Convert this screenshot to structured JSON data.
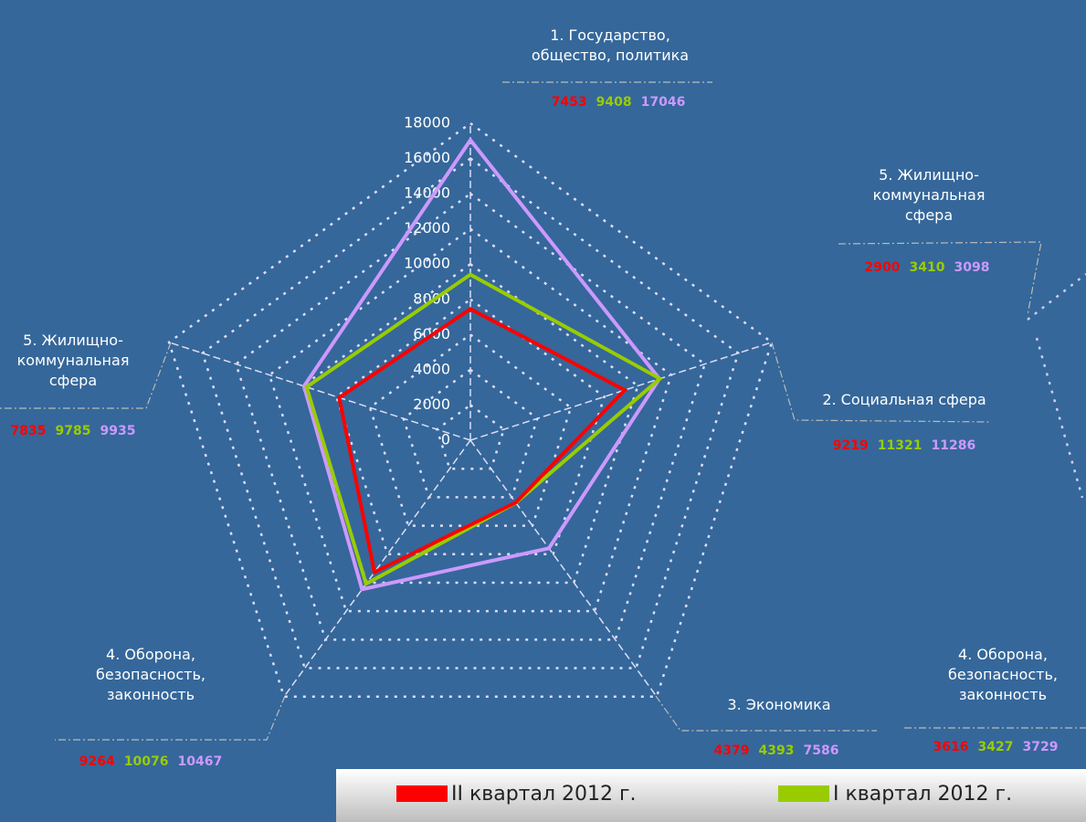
{
  "chart_data": [
    {
      "type": "radar",
      "categories": [
        "1. Государство, общество, политика",
        "2. Социальная сфера",
        "3. Экономика",
        "4. Оборона, безопасность, законность",
        "5. Жилищно-коммунальная сфера"
      ],
      "series": [
        {
          "name": "II квартал 2012 г.",
          "color": "#ff0000",
          "values": [
            7453,
            9219,
            4379,
            9264,
            7835
          ]
        },
        {
          "name": "I квартал 2012 г.",
          "color": "#99cc00",
          "values": [
            9408,
            11321,
            4393,
            10076,
            9785
          ]
        },
        {
          "color": "#cc99ff",
          "values": [
            17046,
            11286,
            7586,
            10467,
            9935
          ]
        }
      ],
      "ylim": [
        0,
        18000
      ],
      "yticks": [
        0,
        2000,
        4000,
        6000,
        8000,
        10000,
        12000,
        14000,
        16000,
        18000
      ],
      "grid": true
    },
    {
      "type": "radar",
      "categories": [
        "5. Жилищно-коммунальная сфера",
        "4. Оборона, безопасность, законность"
      ],
      "series": [
        {
          "color": "#ff0000",
          "values": [
            2900,
            3616
          ]
        },
        {
          "color": "#99cc00",
          "values": [
            3410,
            3427
          ]
        },
        {
          "color": "#cc99ff",
          "values": [
            3098,
            3729
          ]
        }
      ]
    }
  ]
}
